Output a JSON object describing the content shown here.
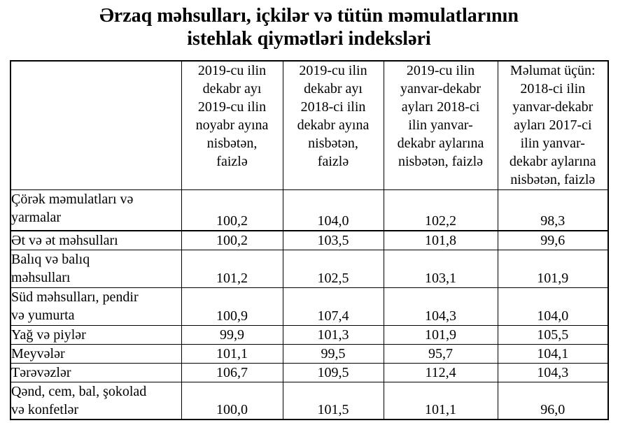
{
  "page": {
    "background_color": "#ffffff",
    "text_color": "#000000",
    "border_color": "#000000"
  },
  "title": {
    "line1": "Ərzaq məhsulları, içkilər və tütün məmulatlarının",
    "line2": "istehlak qiymətləri indeksləri"
  },
  "table": {
    "columns": [
      "",
      "2019-cu ilin\ndekabr ayı\n2019-cu ilin\nnoyabr ayına\nnisbətən,\nfaizlə",
      "2019-cu ilin\ndekabr ayı\n2018-ci ilin\ndekabr ayına\nnisbətən,\nfaizlə",
      "2019-cu ilin\nyanvar-dekabr\nayları 2018-ci\nilin yanvar-\ndekabr aylarına\nnisbətən, faizlə",
      "Məlumat üçün:\n2018-ci ilin\nyanvar-dekabr\nayları 2017-ci\nilin yanvar-\ndekabr aylarına\nnisbətən, faizlə"
    ],
    "rows": [
      {
        "label": "Çörək məmulatları və\nyarmalar",
        "values": [
          "100,2",
          "104,0",
          "102,2",
          "98,3"
        ]
      },
      {
        "label": "Ət və ət məhsulları",
        "values": [
          "100,2",
          "103,5",
          "101,8",
          "99,6"
        ]
      },
      {
        "label": "Balıq və balıq\nməhsulları",
        "values": [
          "101,2",
          "102,5",
          "103,1",
          "101,9"
        ]
      },
      {
        "label": "Süd məhsulları, pendir\nvə yumurta",
        "values": [
          "100,9",
          "107,4",
          "104,3",
          "104,0"
        ]
      },
      {
        "label": "Yağ və piylər",
        "values": [
          "99,9",
          "101,3",
          "101,9",
          "105,5"
        ]
      },
      {
        "label": "Meyvələr",
        "values": [
          "101,1",
          "99,5",
          "95,7",
          "104,1"
        ]
      },
      {
        "label": "Tərəvəzlər",
        "values": [
          "106,7",
          "109,5",
          "112,4",
          "104,3"
        ]
      },
      {
        "label": "Qənd, cem, bal, şokolad\nvə konfetlər",
        "values": [
          "100,0",
          "101,5",
          "101,1",
          "96,0"
        ]
      }
    ]
  }
}
